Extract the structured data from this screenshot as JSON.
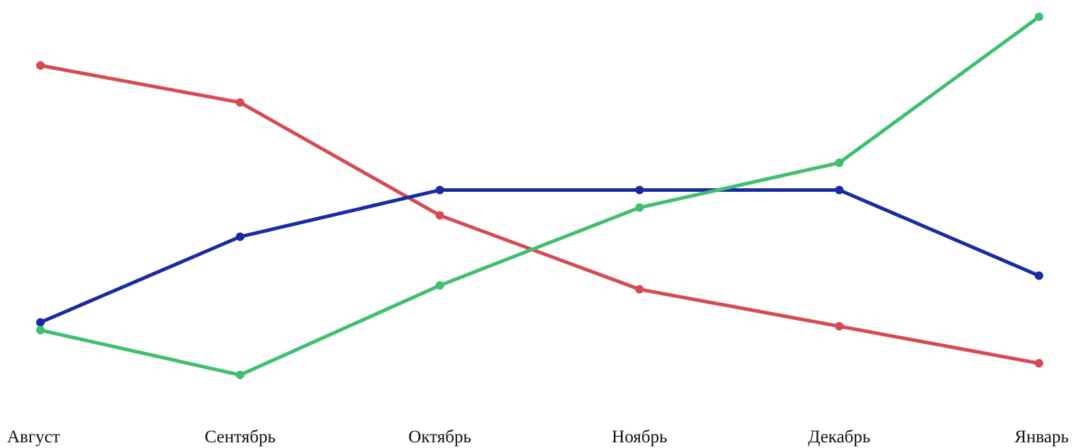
{
  "chart_data": {
    "type": "line",
    "title": "",
    "xlabel": "",
    "ylabel": "",
    "categories": [
      "Август",
      "Сентябрь",
      "Октябрь",
      "Ноябрь",
      "Декабрь",
      "Январь"
    ],
    "ylim": [
      0,
      100
    ],
    "grid": false,
    "legend": "none",
    "series": [
      {
        "color": "#d64a55",
        "values": [
          85.0,
          75.5,
          46.5,
          27.5,
          18.0,
          8.5
        ]
      },
      {
        "color": "#1a2aa0",
        "values": [
          19.0,
          41.0,
          53.0,
          53.0,
          53.0,
          31.0
        ]
      },
      {
        "color": "#3fbf6f",
        "values": [
          17.0,
          5.5,
          28.5,
          48.5,
          60.0,
          97.5
        ]
      }
    ]
  }
}
